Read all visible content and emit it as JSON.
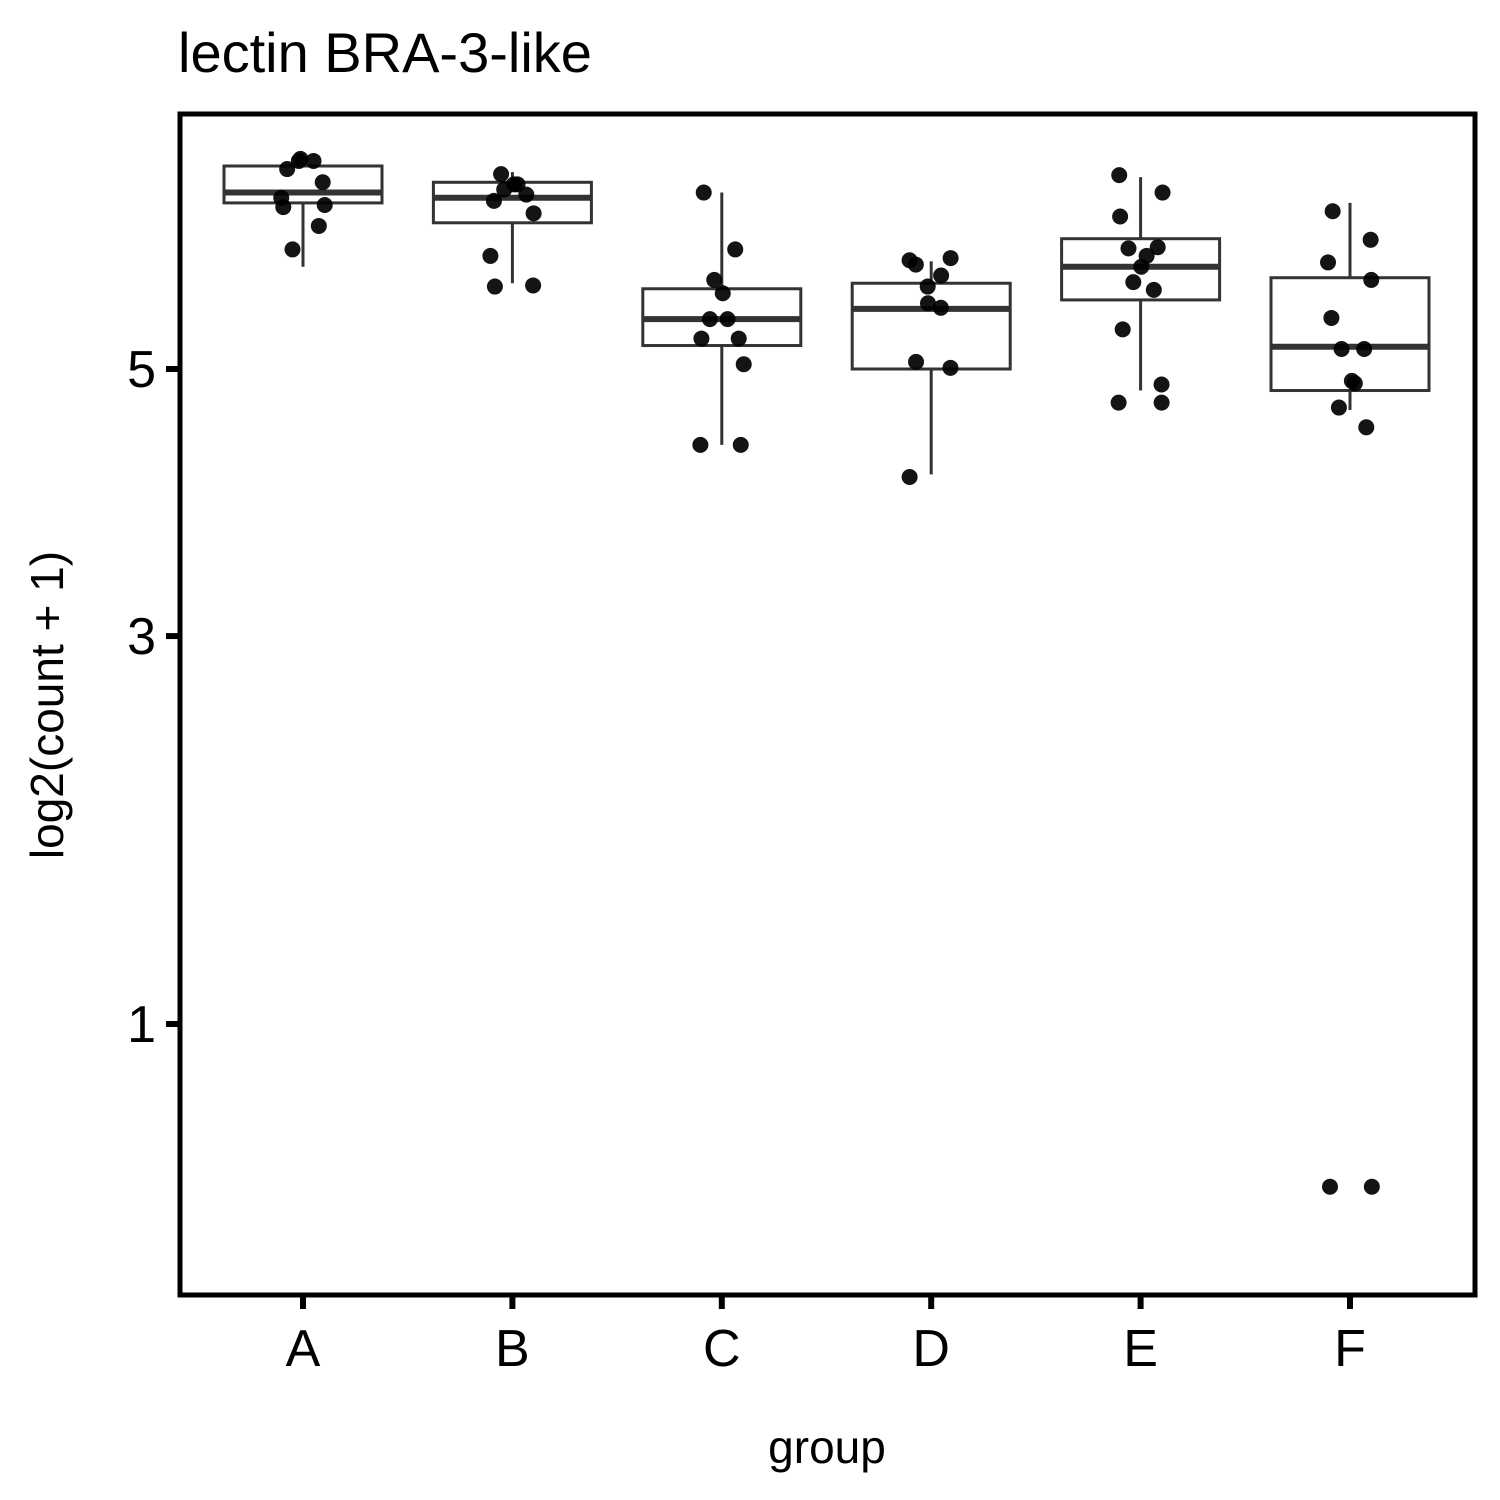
{
  "chart_data": {
    "type": "box",
    "title": "lectin BRA-3-like",
    "xlabel": "group",
    "ylabel": "log2(count + 1)",
    "y_scale": "sqrt",
    "ylim": [
      0.3,
      7.0
    ],
    "y_ticks": [
      1,
      3,
      5
    ],
    "y_tick_labels": [
      "1",
      "3",
      "5"
    ],
    "grid": false,
    "categories": [
      "A",
      "B",
      "C",
      "D",
      "E",
      "F"
    ],
    "boxes": [
      {
        "group": "A",
        "lower_whisker": 5.9,
        "q1": 6.5,
        "median": 6.6,
        "q3": 6.86,
        "upper_whisker": 6.92
      },
      {
        "group": "B",
        "lower_whisker": 5.75,
        "q1": 6.31,
        "median": 6.55,
        "q3": 6.7,
        "upper_whisker": 6.8
      },
      {
        "group": "C",
        "lower_whisker": 4.38,
        "q1": 5.2,
        "median": 5.43,
        "q3": 5.7,
        "upper_whisker": 6.6
      },
      {
        "group": "D",
        "lower_whisker": 4.15,
        "q1": 5.0,
        "median": 5.52,
        "q3": 5.75,
        "upper_whisker": 5.95
      },
      {
        "group": "E",
        "lower_whisker": 4.82,
        "q1": 5.6,
        "median": 5.9,
        "q3": 6.16,
        "upper_whisker": 6.75
      },
      {
        "group": "F",
        "lower_whisker": 4.66,
        "q1": 4.82,
        "median": 5.19,
        "q3": 5.8,
        "upper_whisker": 6.5
      }
    ],
    "points": [
      {
        "group": "A",
        "values": [
          6.93,
          6.91,
          6.91,
          6.83,
          6.7,
          6.55,
          6.48,
          6.46,
          6.28,
          6.06
        ]
      },
      {
        "group": "B",
        "values": [
          6.78,
          6.68,
          6.68,
          6.63,
          6.58,
          6.52,
          6.4,
          6.0,
          5.73,
          5.72
        ]
      },
      {
        "group": "C",
        "values": [
          6.6,
          6.06,
          5.78,
          5.66,
          5.43,
          5.43,
          5.26,
          5.26,
          5.04,
          4.38,
          4.38
        ]
      },
      {
        "group": "D",
        "values": [
          5.96,
          5.98,
          5.92,
          5.82,
          5.72,
          5.57,
          5.53,
          5.06,
          5.01,
          4.13
        ]
      },
      {
        "group": "E",
        "values": [
          6.77,
          6.6,
          6.37,
          6.08,
          6.07,
          6.0,
          5.9,
          5.76,
          5.69,
          5.34,
          4.87,
          4.72,
          4.72
        ]
      },
      {
        "group": "F",
        "values": [
          6.42,
          6.15,
          5.94,
          5.78,
          5.44,
          5.17,
          5.17,
          4.9,
          4.88,
          4.68,
          4.52,
          0.48,
          0.48
        ]
      }
    ]
  }
}
